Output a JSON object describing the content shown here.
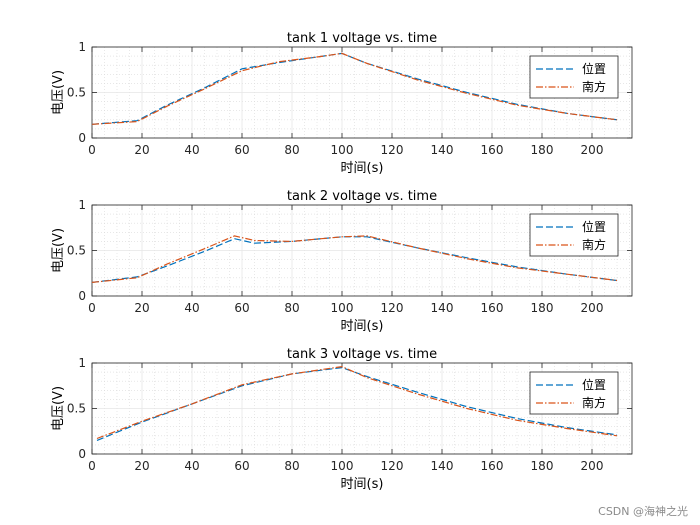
{
  "watermark": "CSDN @海神之光",
  "colors": {
    "series_1": "#0072BD",
    "series_2": "#D95319",
    "axes": "#262626",
    "grid": "#e6e6e6",
    "background": "#ffffff"
  },
  "chart_data": [
    {
      "type": "line",
      "title": "tank 1 voltage vs. time",
      "xlabel": "时间(s)",
      "ylabel": "电压(V)",
      "xlim": [
        0,
        216
      ],
      "ylim": [
        0,
        1
      ],
      "xticks": [
        0,
        20,
        40,
        60,
        80,
        100,
        120,
        140,
        160,
        180,
        200
      ],
      "yticks": [
        0,
        0.5,
        1
      ],
      "yticklabels": [
        "0",
        "0.5",
        "1"
      ],
      "grid": "on (major and minor)",
      "legend": "top-right",
      "series": [
        {
          "name": "位置",
          "style": "dashed",
          "x": [
            0,
            18,
            30,
            45,
            60,
            75,
            90,
            100,
            110,
            130,
            150,
            170,
            190,
            210
          ],
          "y": [
            0.15,
            0.19,
            0.36,
            0.55,
            0.76,
            0.83,
            0.89,
            0.93,
            0.82,
            0.65,
            0.5,
            0.37,
            0.27,
            0.2
          ]
        },
        {
          "name": "南方",
          "style": "dashdot",
          "x": [
            0,
            18,
            30,
            45,
            60,
            75,
            90,
            100,
            110,
            130,
            150,
            170,
            190,
            210
          ],
          "y": [
            0.15,
            0.18,
            0.35,
            0.54,
            0.74,
            0.84,
            0.89,
            0.93,
            0.82,
            0.64,
            0.49,
            0.36,
            0.27,
            0.2
          ]
        }
      ]
    },
    {
      "type": "line",
      "title": "tank 2 voltage vs. time",
      "xlabel": "时间(s)",
      "ylabel": "电压(V)",
      "xlim": [
        0,
        216
      ],
      "ylim": [
        0,
        1
      ],
      "xticks": [
        0,
        20,
        40,
        60,
        80,
        100,
        120,
        140,
        160,
        180,
        200
      ],
      "yticks": [
        0,
        0.5,
        1
      ],
      "yticklabels": [
        "0",
        "0.5",
        "1"
      ],
      "grid": "on (major and minor)",
      "legend": "top-right",
      "series": [
        {
          "name": "位置",
          "style": "dashed",
          "x": [
            0,
            18,
            30,
            45,
            57,
            65,
            80,
            100,
            110,
            130,
            150,
            170,
            190,
            210
          ],
          "y": [
            0.15,
            0.21,
            0.33,
            0.49,
            0.63,
            0.58,
            0.6,
            0.65,
            0.65,
            0.53,
            0.42,
            0.32,
            0.24,
            0.17
          ]
        },
        {
          "name": "南方",
          "style": "dashdot",
          "x": [
            0,
            18,
            30,
            45,
            57,
            65,
            80,
            100,
            110,
            130,
            150,
            170,
            190,
            210
          ],
          "y": [
            0.15,
            0.2,
            0.35,
            0.52,
            0.66,
            0.61,
            0.6,
            0.65,
            0.66,
            0.53,
            0.41,
            0.31,
            0.24,
            0.17
          ]
        }
      ]
    },
    {
      "type": "line",
      "title": "tank 3 voltage vs. time",
      "xlabel": "时间(s)",
      "ylabel": "电压(V)",
      "xlim": [
        0,
        216
      ],
      "ylim": [
        0,
        1
      ],
      "xticks": [
        0,
        20,
        40,
        60,
        80,
        100,
        120,
        140,
        160,
        180,
        200
      ],
      "yticks": [
        0,
        0.5,
        1
      ],
      "yticklabels": [
        "0",
        "0.5",
        "1"
      ],
      "grid": "on (major and minor)",
      "legend": "top-right",
      "series": [
        {
          "name": "位置",
          "style": "dashed",
          "x": [
            2,
            20,
            40,
            60,
            80,
            100,
            110,
            130,
            150,
            170,
            190,
            210
          ],
          "y": [
            0.15,
            0.35,
            0.55,
            0.75,
            0.88,
            0.95,
            0.85,
            0.68,
            0.52,
            0.39,
            0.29,
            0.21
          ]
        },
        {
          "name": "南方",
          "style": "dashdot",
          "x": [
            2,
            20,
            40,
            60,
            80,
            100,
            110,
            130,
            150,
            170,
            190,
            210
          ],
          "y": [
            0.17,
            0.36,
            0.55,
            0.76,
            0.88,
            0.96,
            0.84,
            0.66,
            0.5,
            0.37,
            0.28,
            0.2
          ]
        }
      ]
    }
  ]
}
